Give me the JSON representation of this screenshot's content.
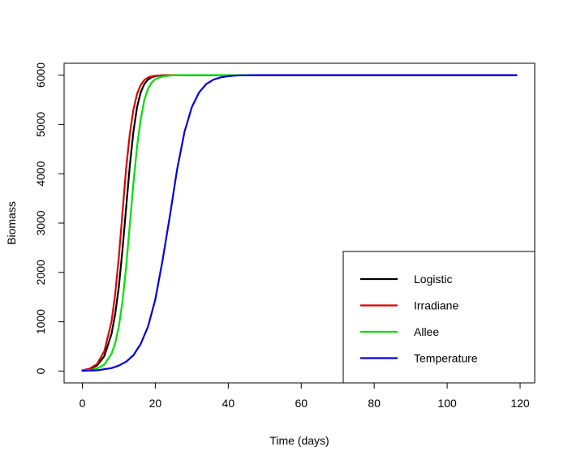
{
  "chart_data": {
    "type": "line",
    "title": "",
    "xlabel": "Time (days)",
    "ylabel": "Biomass",
    "xlim": [
      -5,
      124
    ],
    "ylim": [
      -240,
      6240
    ],
    "x_ticks": [
      0,
      20,
      40,
      60,
      80,
      100,
      120
    ],
    "y_ticks": [
      0,
      1000,
      2000,
      3000,
      4000,
      5000,
      6000
    ],
    "grid": false,
    "legend_position": "bottom-right",
    "series": [
      {
        "name": "Logistic",
        "color": "#000000",
        "x": [
          0,
          2,
          4,
          6,
          8,
          9,
          10,
          11,
          12,
          13,
          14,
          15,
          16,
          17,
          18,
          19,
          20,
          21,
          22,
          24,
          26,
          30,
          40,
          60,
          80,
          100,
          119
        ],
        "values": [
          15,
          40,
          110,
          300,
          750,
          1150,
          1700,
          2450,
          3300,
          4150,
          4850,
          5350,
          5650,
          5820,
          5910,
          5955,
          5978,
          5990,
          5995,
          5999,
          6000,
          6000,
          6000,
          6000,
          6000,
          6000,
          6000
        ]
      },
      {
        "name": "Irradiane",
        "color": "#dd0000",
        "x": [
          0,
          2,
          4,
          6,
          8,
          9,
          10,
          11,
          12,
          13,
          14,
          15,
          16,
          17,
          18,
          19,
          20,
          22,
          24,
          26,
          30,
          40,
          60,
          80,
          100,
          119
        ],
        "values": [
          15,
          50,
          140,
          400,
          1000,
          1550,
          2300,
          3200,
          4100,
          4800,
          5300,
          5620,
          5800,
          5900,
          5950,
          5975,
          5988,
          5997,
          6000,
          6000,
          6000,
          6000,
          6000,
          6000,
          6000,
          6000
        ]
      },
      {
        "name": "Allee",
        "color": "#00e000",
        "x": [
          0,
          2,
          4,
          6,
          8,
          9,
          10,
          11,
          12,
          13,
          14,
          15,
          16,
          17,
          18,
          19,
          20,
          22,
          24,
          26,
          28,
          30,
          40,
          60,
          80,
          100,
          119
        ],
        "values": [
          10,
          20,
          50,
          130,
          350,
          560,
          900,
          1400,
          2100,
          2950,
          3800,
          4550,
          5100,
          5500,
          5720,
          5850,
          5920,
          5975,
          5992,
          5998,
          6000,
          6000,
          6000,
          6000,
          6000,
          6000,
          6000
        ]
      },
      {
        "name": "Temperature",
        "color": "#0000dd",
        "x": [
          0,
          4,
          8,
          10,
          12,
          14,
          16,
          18,
          20,
          22,
          24,
          26,
          28,
          30,
          32,
          34,
          36,
          38,
          40,
          42,
          44,
          46,
          48,
          60,
          80,
          100,
          119
        ],
        "values": [
          5,
          15,
          60,
          110,
          190,
          320,
          550,
          900,
          1450,
          2250,
          3150,
          4100,
          4850,
          5350,
          5650,
          5820,
          5910,
          5955,
          5978,
          5990,
          5996,
          5999,
          6000,
          6000,
          6000,
          6000,
          6000
        ]
      }
    ]
  }
}
